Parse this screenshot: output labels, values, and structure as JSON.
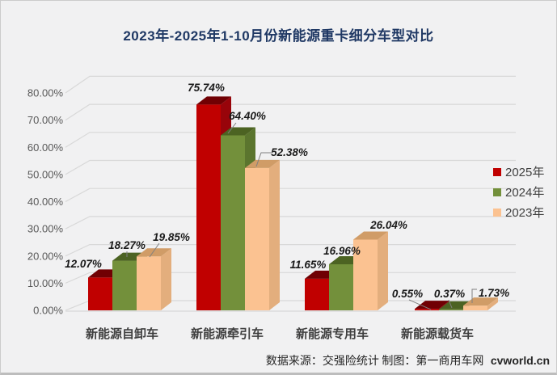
{
  "title": "2023年-2025年1-10月份新能源重卡细分车型对比",
  "footer": {
    "source_label": "数据来源：交强险统计",
    "credit_label": "制图：第一商用车网",
    "site": "cvworld.cn"
  },
  "colors": {
    "background": "#F1F1F2",
    "title_text": "#1F3864",
    "grid": "#D8D8D8",
    "axis_text": "#595959",
    "data_label_text": "#1A1A1A",
    "category_text": "#3F3F3F",
    "leader_line": "#808080"
  },
  "chart_data": {
    "type": "bar",
    "projection": "3d-clustered-column",
    "title": "2023年-2025年1-10月份新能源重卡细分车型对比",
    "categories": [
      "新能源自卸车",
      "新能源牵引车",
      "新能源专用车",
      "新能源载货车"
    ],
    "series": [
      {
        "name": "2025年",
        "color": "#C00000",
        "color_top": "#700003",
        "color_side": "#98040A",
        "values": [
          12.07,
          75.74,
          11.65,
          0.55
        ]
      },
      {
        "name": "2024年",
        "color": "#73903B",
        "color_top": "#4C6322",
        "color_side": "#5B752E",
        "values": [
          18.27,
          64.4,
          16.96,
          0.37
        ]
      },
      {
        "name": "2023年",
        "color": "#FBC291",
        "color_top": "#D09C67",
        "color_side": "#E3AE7D",
        "values": [
          19.85,
          52.38,
          26.04,
          1.73
        ]
      }
    ],
    "value_suffix": "%",
    "xlabel": "",
    "ylabel": "",
    "ylim": [
      0,
      80
    ],
    "ytick_step": 10,
    "ytick_labels": [
      "0.00%",
      "10.00%",
      "20.00%",
      "30.00%",
      "40.00%",
      "50.00%",
      "60.00%",
      "70.00%",
      "80.00%"
    ],
    "grid": true,
    "legend_position": "right"
  }
}
